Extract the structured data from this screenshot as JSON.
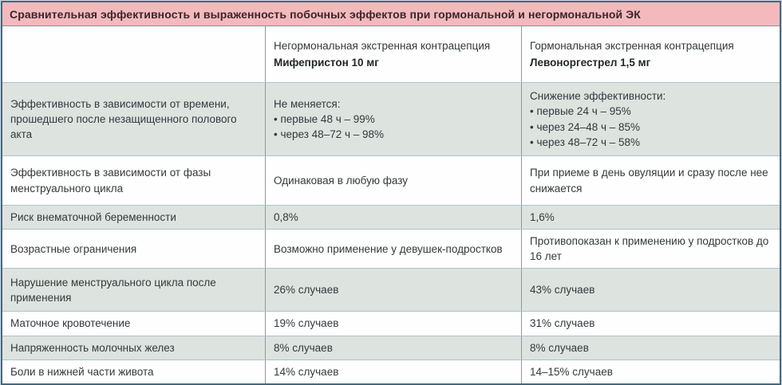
{
  "colors": {
    "title_bg": "#f4b9bd",
    "title_text": "#39272b",
    "row_alt_bg": "#dde3df",
    "row_bg": "#fdfefd",
    "outer_border": "#46687c",
    "row_separator": "#adc2cc",
    "column_divider": "#909a9c",
    "page_bg": "#ccdae2"
  },
  "table": {
    "title": "Сравнительная эффективность и выраженность побочных эффектов при гормональной и негормональной ЭК",
    "column_headers": [
      {
        "category": "Негормональная экстренная контрацепция",
        "drug": "Мифепристон 10 мг"
      },
      {
        "category": "Гормональная экстренная контрацепция",
        "drug": "Левоноргестрел 1,5 мг"
      }
    ],
    "rows": [
      {
        "label": "Эффективность в зависимости от времени, прошедшего после незащищенного полового акта",
        "nonhormonal": "Не меняется:\n• первые 48 ч – 99%\n• через 48–72 ч – 98%",
        "hormonal": "Снижение эффективности:\n• первые 24 ч – 95%\n• через 24–48 ч – 85%\n• через 48–72 ч – 58%"
      },
      {
        "label": "Эффективность в зависимости от фазы менструального цикла",
        "nonhormonal": "Одинаковая в любую фазу",
        "hormonal": "При приеме в день овуляции и сразу после нее снижается"
      },
      {
        "label": "Риск внематочной беременности",
        "nonhormonal": "0,8%",
        "hormonal": "1,6%"
      },
      {
        "label": "Возрастные ограничения",
        "nonhormonal": "Возможно применение у девушек-подростков",
        "hormonal": "Противопоказан к применению у подростков до 16 лет"
      },
      {
        "label": "Нарушение менструального цикла после применения",
        "nonhormonal": "26% случаев",
        "hormonal": "43% случаев"
      },
      {
        "label": "Маточное кровотечение",
        "nonhormonal": "19% случаев",
        "hormonal": "31% случаев"
      },
      {
        "label": "Напряженность молочных желез",
        "nonhormonal": "8% случаев",
        "hormonal": "8% случаев"
      },
      {
        "label": "Боли в нижней части живота",
        "nonhormonal": "14% случаев",
        "hormonal": "14–15% случаев"
      }
    ]
  }
}
